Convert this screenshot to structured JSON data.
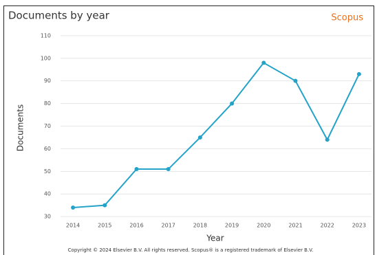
{
  "chart_data": {
    "type": "line",
    "title": "Documents by year",
    "brand": "Scopus",
    "x_label": "Year",
    "y_label": "Documents",
    "footer": "Copyright © 2024 Elsevier B.V. All rights reserved. Scopus® is a registered trademark of Elsevier B.V.",
    "categories": [
      "2014",
      "2015",
      "2016",
      "2017",
      "2018",
      "2019",
      "2020",
      "2021",
      "2022",
      "2023"
    ],
    "values": [
      34,
      35,
      51,
      51,
      65,
      80,
      98,
      90,
      64,
      93
    ],
    "color": "#23a3c8",
    "ylim": [
      27,
      113
    ],
    "yticks": [
      30,
      40,
      50,
      60,
      70,
      80,
      90,
      100,
      110
    ],
    "grid": true
  }
}
